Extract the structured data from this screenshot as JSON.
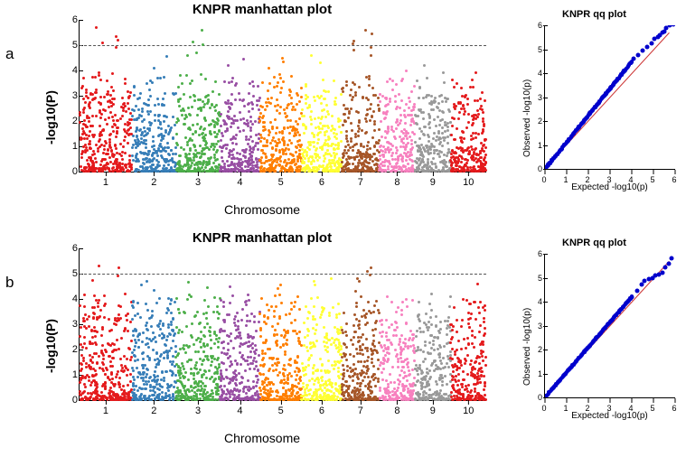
{
  "rows": [
    {
      "panel_label": "a",
      "manhattan": {
        "title": "KNPR manhattan plot",
        "ylabel": "-log10(P)",
        "xlabel": "Chromosome",
        "ylim": [
          0,
          6
        ],
        "yticks": [
          0,
          1,
          2,
          3,
          4,
          5,
          6
        ],
        "threshold": 5.0,
        "background_color": "#ffffff",
        "threshold_color": "#555555",
        "dot_size": 3,
        "chromosomes": [
          {
            "label": "1",
            "color": "#e41a1c",
            "width": 1.25,
            "cap": 3.25,
            "outliers": [
              5.7,
              5.35,
              5.2,
              5.1,
              4.9
            ]
          },
          {
            "label": "2",
            "color": "#377eb8",
            "width": 1.05,
            "cap": 3.1,
            "outliers": [
              4.55,
              4.1
            ]
          },
          {
            "label": "3",
            "color": "#4daf4a",
            "width": 1.05,
            "cap": 3.15,
            "outliers": [
              5.6,
              5.12,
              5.02,
              4.7,
              4.6
            ]
          },
          {
            "label": "4",
            "color": "#984ea3",
            "width": 0.95,
            "cap": 3.1,
            "outliers": [
              4.45,
              4.2
            ]
          },
          {
            "label": "5",
            "color": "#ff7f00",
            "width": 1.0,
            "cap": 3.15,
            "outliers": [
              4.5,
              4.35,
              4.1
            ]
          },
          {
            "label": "6",
            "color": "#ffff33",
            "width": 0.95,
            "cap": 3.05,
            "outliers": [
              4.6,
              4.3
            ]
          },
          {
            "label": "7",
            "color": "#a65628",
            "width": 0.9,
            "cap": 3.1,
            "outliers": [
              5.6,
              5.45,
              5.15,
              5.05,
              4.9,
              4.8,
              4.6
            ]
          },
          {
            "label": "8",
            "color": "#f781bf",
            "width": 0.85,
            "cap": 3.0,
            "outliers": [
              4.0
            ]
          },
          {
            "label": "9",
            "color": "#999999",
            "width": 0.85,
            "cap": 3.05,
            "outliers": [
              4.2,
              3.9
            ]
          },
          {
            "label": "10",
            "color": "#e41a1c",
            "width": 0.85,
            "cap": 2.95,
            "outliers": [
              3.9
            ]
          }
        ]
      },
      "qq": {
        "title": "KNPR qq plot",
        "ylabel": "Observed -log10(p)",
        "xlabel": "Expected -log10(p)",
        "xlim": [
          0,
          6
        ],
        "ylim": [
          0,
          6
        ],
        "xticks": [
          0,
          1,
          2,
          3,
          4,
          5,
          6
        ],
        "yticks": [
          0,
          1,
          2,
          3,
          4,
          5,
          6
        ],
        "dot_color": "#0000cc",
        "line_color": "#cc3333",
        "tail": [
          [
            4.1,
            4.6
          ],
          [
            4.3,
            4.75
          ],
          [
            4.5,
            4.95
          ],
          [
            4.7,
            5.1
          ],
          [
            4.9,
            5.25
          ],
          [
            5.05,
            5.45
          ],
          [
            5.2,
            5.5
          ],
          [
            5.3,
            5.6
          ],
          [
            5.4,
            5.7
          ],
          [
            5.5,
            5.75
          ],
          [
            5.6,
            5.9
          ],
          [
            5.75,
            6.0
          ],
          [
            5.9,
            6.05
          ]
        ]
      }
    },
    {
      "panel_label": "b",
      "manhattan": {
        "title": "KNPR manhattan plot",
        "ylabel": "-log10(P)",
        "xlabel": "Chromosome",
        "ylim": [
          0,
          6
        ],
        "yticks": [
          0,
          1,
          2,
          3,
          4,
          5,
          6
        ],
        "threshold": 5.0,
        "background_color": "#ffffff",
        "threshold_color": "#555555",
        "dot_size": 3,
        "chromosomes": [
          {
            "label": "1",
            "color": "#e41a1c",
            "width": 1.25,
            "cap": 3.55,
            "outliers": [
              5.3,
              5.25,
              4.9,
              4.75
            ]
          },
          {
            "label": "2",
            "color": "#377eb8",
            "width": 1.05,
            "cap": 3.45,
            "outliers": [
              4.7,
              4.55,
              4.35
            ]
          },
          {
            "label": "3",
            "color": "#4daf4a",
            "width": 1.05,
            "cap": 3.5,
            "outliers": [
              4.65,
              4.45
            ]
          },
          {
            "label": "4",
            "color": "#984ea3",
            "width": 0.95,
            "cap": 3.5,
            "outliers": [
              4.5
            ]
          },
          {
            "label": "5",
            "color": "#ff7f00",
            "width": 1.0,
            "cap": 3.5,
            "outliers": [
              4.55,
              4.4
            ]
          },
          {
            "label": "6",
            "color": "#ffff33",
            "width": 0.95,
            "cap": 3.5,
            "outliers": [
              4.8,
              4.7,
              4.55
            ]
          },
          {
            "label": "7",
            "color": "#a65628",
            "width": 0.9,
            "cap": 3.6,
            "outliers": [
              5.25,
              5.1,
              4.95,
              4.8,
              4.7
            ]
          },
          {
            "label": "8",
            "color": "#f781bf",
            "width": 0.85,
            "cap": 3.35,
            "outliers": [
              4.1
            ]
          },
          {
            "label": "9",
            "color": "#999999",
            "width": 0.85,
            "cap": 3.4,
            "outliers": [
              4.2
            ]
          },
          {
            "label": "10",
            "color": "#e41a1c",
            "width": 0.85,
            "cap": 3.25,
            "outliers": [
              4.6,
              4.0
            ]
          }
        ]
      },
      "qq": {
        "title": "KNPR qq plot",
        "ylabel": "Observed -log10(p)",
        "xlabel": "Expected -log10(p)",
        "xlim": [
          0,
          6
        ],
        "ylim": [
          0,
          6
        ],
        "xticks": [
          0,
          1,
          2,
          3,
          4,
          5,
          6
        ],
        "yticks": [
          0,
          1,
          2,
          3,
          4,
          5,
          6
        ],
        "dot_color": "#0000cc",
        "line_color": "#cc3333",
        "tail": [
          [
            4.0,
            4.2
          ],
          [
            4.25,
            4.45
          ],
          [
            4.45,
            4.7
          ],
          [
            4.6,
            4.85
          ],
          [
            4.8,
            4.95
          ],
          [
            4.95,
            5.0
          ],
          [
            5.1,
            5.1
          ],
          [
            5.25,
            5.15
          ],
          [
            5.4,
            5.2
          ],
          [
            5.55,
            5.45
          ],
          [
            5.7,
            5.6
          ],
          [
            5.85,
            5.8
          ]
        ]
      }
    }
  ]
}
